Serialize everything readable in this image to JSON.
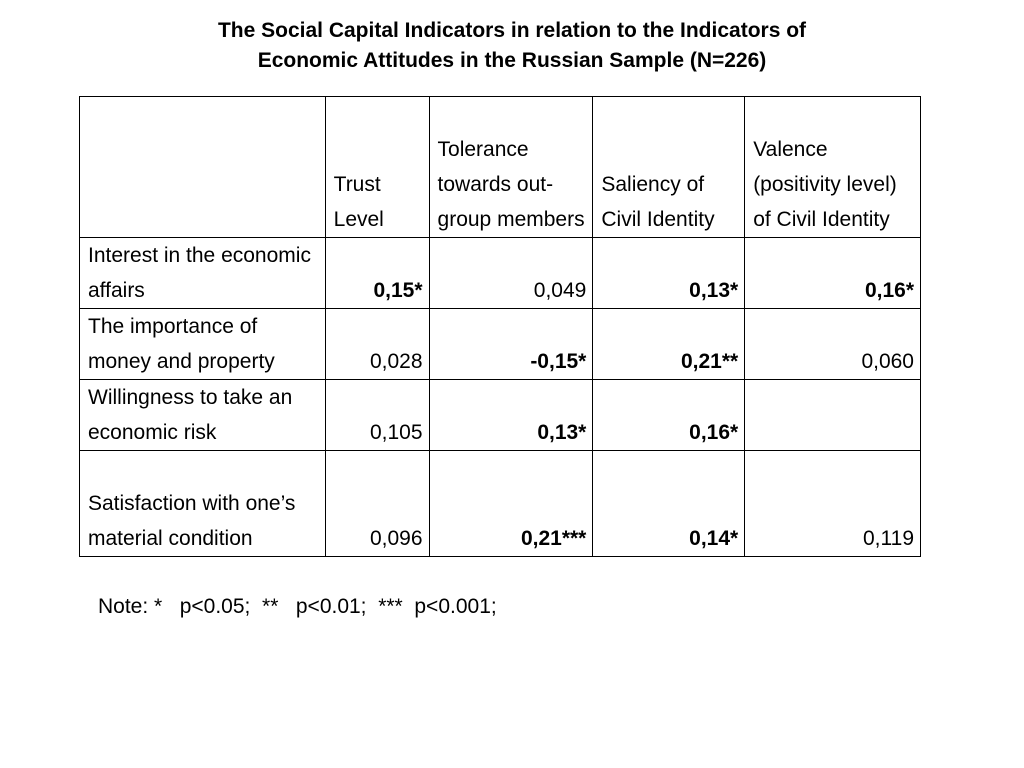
{
  "title": {
    "line1": "The Social Capital Indicators in relation to the Indicators of",
    "line2": "Economic Attitudes in the Russian Sample (N=226)"
  },
  "table": {
    "header": {
      "corner": "",
      "columns": [
        "Trust Level",
        "Tolerance towards out-group members",
        "Saliency of Civil Identity",
        "Valence (positivity level) of Civil Identity"
      ]
    },
    "rows": [
      {
        "label": "Interest in the economic affairs",
        "cells": [
          {
            "text": "0,15*",
            "bold": true
          },
          {
            "text": "0,049",
            "bold": false
          },
          {
            "text": "0,13*",
            "bold": true
          },
          {
            "text": "0,16*",
            "bold": true
          }
        ]
      },
      {
        "label": "The importance of money and property",
        "cells": [
          {
            "text": "0,028",
            "bold": false
          },
          {
            "text": "-0,15*",
            "bold": true
          },
          {
            "text": "0,21**",
            "bold": true
          },
          {
            "text": "0,060",
            "bold": false
          }
        ]
      },
      {
        "label": "Willingness to take an economic risk",
        "cells": [
          {
            "text": "0,105",
            "bold": false
          },
          {
            "text": "0,13*",
            "bold": true
          },
          {
            "text": "0,16*",
            "bold": true
          },
          {
            "text": "",
            "bold": false
          }
        ]
      },
      {
        "label": "Satisfaction with one’s material condition",
        "cells": [
          {
            "text": "0,096",
            "bold": false
          },
          {
            "text": "0,21***",
            "bold": true
          },
          {
            "text": "0,14*",
            "bold": true
          },
          {
            "text": "0,119",
            "bold": false
          }
        ]
      }
    ]
  },
  "note": "Note: *   p<0.05;  **   p<0.01;  ***  p<0.001;"
}
